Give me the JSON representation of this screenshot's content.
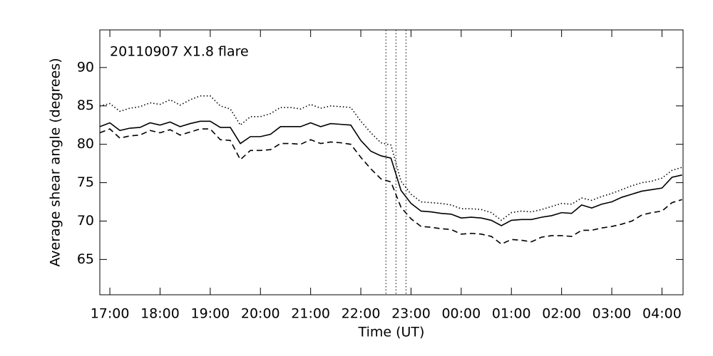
{
  "chart_data": {
    "type": "line",
    "annotation": "20110907 X1.8 flare",
    "xlabel": "Time (UT)",
    "ylabel": "Average shear angle (degrees)",
    "x": [
      16.8,
      17.0,
      17.2,
      17.4,
      17.6,
      17.8,
      18.0,
      18.2,
      18.4,
      18.6,
      18.8,
      19.0,
      19.2,
      19.4,
      19.6,
      19.8,
      20.0,
      20.2,
      20.4,
      20.6,
      20.8,
      21.0,
      21.2,
      21.4,
      21.6,
      21.8,
      22.0,
      22.2,
      22.4,
      22.6,
      22.8,
      23.0,
      23.2,
      23.4,
      23.6,
      23.8,
      24.0,
      24.2,
      24.4,
      24.6,
      24.8,
      25.0,
      25.2,
      25.4,
      25.6,
      25.8,
      26.0,
      26.2,
      26.4,
      26.6,
      26.8,
      27.0,
      27.2,
      27.4,
      27.6,
      27.8,
      28.0,
      28.2,
      28.4
    ],
    "series": [
      {
        "color": "#000000",
        "linestyle": "solid",
        "values": [
          82.3,
          82.8,
          81.8,
          82.1,
          82.2,
          82.8,
          82.5,
          82.9,
          82.3,
          82.7,
          83.0,
          83.0,
          82.2,
          82.2,
          80.1,
          81.0,
          81.0,
          81.3,
          82.3,
          82.3,
          82.3,
          82.8,
          82.3,
          82.7,
          82.6,
          82.5,
          80.5,
          79.1,
          78.5,
          78.2,
          74.0,
          72.3,
          71.3,
          71.2,
          71.0,
          70.9,
          70.4,
          70.5,
          70.4,
          70.1,
          69.4,
          70.1,
          70.2,
          70.2,
          70.5,
          70.7,
          71.1,
          71.0,
          72.1,
          71.7,
          72.2,
          72.5,
          73.1,
          73.5,
          73.9,
          74.1,
          74.3,
          75.7,
          76.0
        ]
      },
      {
        "color": "#000000",
        "linestyle": "dotted",
        "values": [
          85.0,
          85.3,
          84.3,
          84.7,
          84.9,
          85.4,
          85.2,
          85.8,
          85.1,
          85.8,
          86.3,
          86.3,
          85.0,
          84.6,
          82.5,
          83.6,
          83.6,
          84.0,
          84.8,
          84.8,
          84.6,
          85.2,
          84.7,
          85.0,
          84.9,
          84.8,
          83.0,
          81.5,
          80.2,
          79.9,
          75.2,
          73.5,
          72.5,
          72.4,
          72.3,
          72.1,
          71.6,
          71.6,
          71.5,
          71.1,
          70.1,
          71.1,
          71.3,
          71.2,
          71.5,
          71.9,
          72.3,
          72.2,
          73.0,
          72.7,
          73.2,
          73.6,
          74.1,
          74.6,
          75.0,
          75.2,
          75.6,
          76.6,
          77.0
        ]
      },
      {
        "color": "#000000",
        "linestyle": "dashed",
        "values": [
          81.5,
          82.0,
          80.8,
          81.1,
          81.2,
          81.8,
          81.5,
          81.9,
          81.2,
          81.6,
          82.0,
          82.0,
          80.6,
          80.5,
          78.0,
          79.2,
          79.2,
          79.3,
          80.1,
          80.1,
          80.0,
          80.6,
          80.1,
          80.3,
          80.2,
          80.0,
          78.3,
          76.8,
          75.5,
          75.1,
          71.8,
          70.3,
          69.3,
          69.2,
          69.0,
          68.9,
          68.3,
          68.4,
          68.3,
          68.0,
          67.0,
          67.6,
          67.5,
          67.3,
          67.9,
          68.1,
          68.1,
          68.0,
          68.8,
          68.8,
          69.1,
          69.3,
          69.6,
          70.0,
          70.8,
          71.1,
          71.3,
          72.4,
          72.8
        ]
      }
    ],
    "vlines": [
      22.5,
      22.7,
      22.9
    ],
    "xlim": [
      16.8,
      28.42
    ],
    "ylim": [
      60.4,
      94.9
    ],
    "xticks": [
      {
        "value": 17,
        "label": "17:00"
      },
      {
        "value": 18,
        "label": "18:00"
      },
      {
        "value": 19,
        "label": "19:00"
      },
      {
        "value": 20,
        "label": "20:00"
      },
      {
        "value": 21,
        "label": "21:00"
      },
      {
        "value": 22,
        "label": "22:00"
      },
      {
        "value": 23,
        "label": "23:00"
      },
      {
        "value": 24,
        "label": "00:00"
      },
      {
        "value": 25,
        "label": "01:00"
      },
      {
        "value": 26,
        "label": "02:00"
      },
      {
        "value": 27,
        "label": "03:00"
      },
      {
        "value": 28,
        "label": "04:00"
      }
    ],
    "yticks": [
      65,
      70,
      75,
      80,
      85,
      90
    ],
    "grid": false
  }
}
